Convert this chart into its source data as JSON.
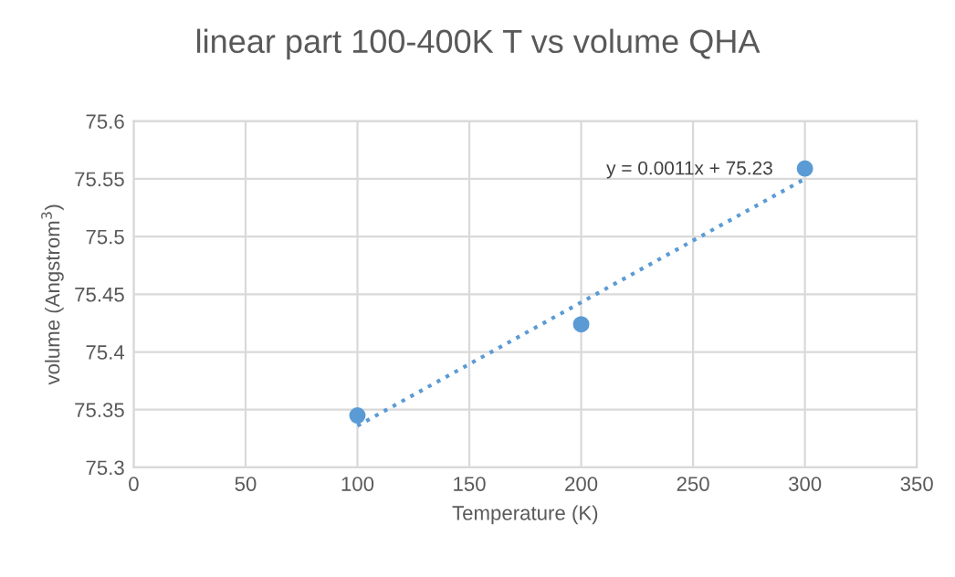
{
  "chart_data": {
    "type": "scatter",
    "title": "linear part 100-400K T vs volume QHA",
    "xlabel": "Temperature (K)",
    "ylabel": "volume (Angstrom$^{3}$)",
    "series": [
      {
        "color": "#5b9bd5",
        "x": [
          100,
          200,
          300
        ],
        "values": [
          75.345,
          75.424,
          75.559
        ],
        "marker": "circle"
      },
      {
        "type": "line",
        "color": "#5b9bd5",
        "x": [
          100,
          300
        ],
        "values": [
          75.336,
          75.55
        ],
        "line_style": "dotted",
        "marker": "none"
      }
    ],
    "annotations": [
      "y = 0.0011x + 75.23"
    ],
    "xlim": [
      0,
      350
    ],
    "xticks": [
      0,
      50,
      100,
      150,
      200,
      250,
      300,
      350
    ],
    "ylim": [
      75.3,
      75.6
    ],
    "yticks": [
      75.3,
      {
        "value": 75.35,
        "label": "75.35"
      },
      75.4,
      {
        "value": 75.45,
        "label": "75.45"
      },
      75.5,
      {
        "value": 75.55,
        "label": "75.55"
      },
      75.6
    ],
    "grid": true,
    "legend": false
  }
}
